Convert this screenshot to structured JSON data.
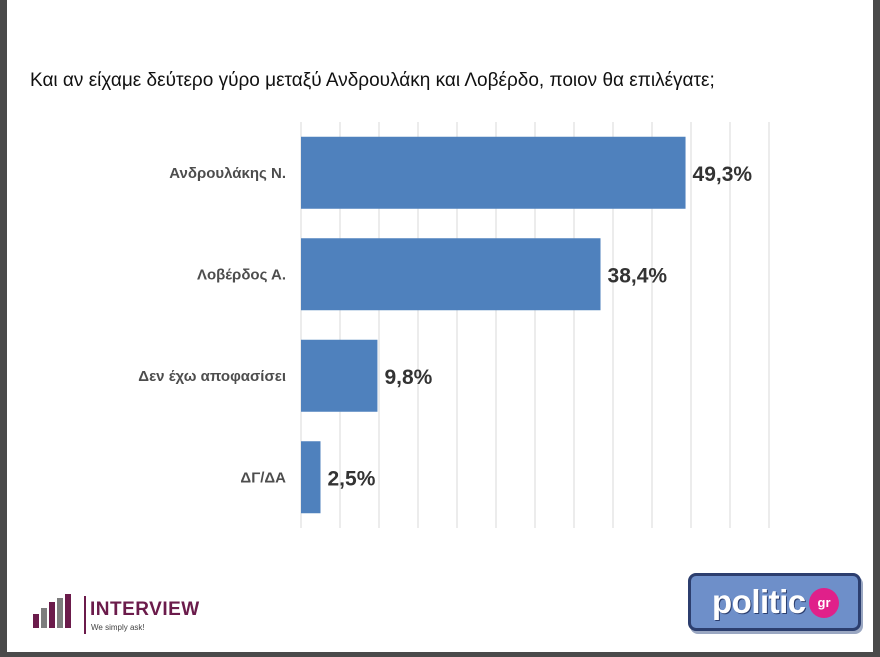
{
  "chart_data": {
    "type": "bar",
    "orientation": "horizontal",
    "title": "Και αν είχαμε δεύτερο γύρο μεταξύ Ανδρουλάκη και Λοβέρδο, ποιον θα επιλέγατε;",
    "categories": [
      "Ανδρουλάκης Ν.",
      "Λοβέρδος Α.",
      "Δεν έχω αποφασίσει",
      "ΔΓ/ΔΑ"
    ],
    "values": [
      49.3,
      38.4,
      9.8,
      2.5
    ],
    "value_labels": [
      "49,3%",
      "38,4%",
      "9,8%",
      "2,5%"
    ],
    "xlim": [
      0,
      60
    ],
    "grid": true,
    "bar_color": "#4f81bd",
    "xlabel": "",
    "ylabel": ""
  },
  "branding": {
    "pollster_name": "INTERVIEW",
    "pollster_tagline": "We simply ask!",
    "media_name": "politic",
    "media_suffix": "gr",
    "pollster_color": "#6b1b4b",
    "media_color": "#6e8fc9",
    "media_accent": "#e0208a"
  }
}
